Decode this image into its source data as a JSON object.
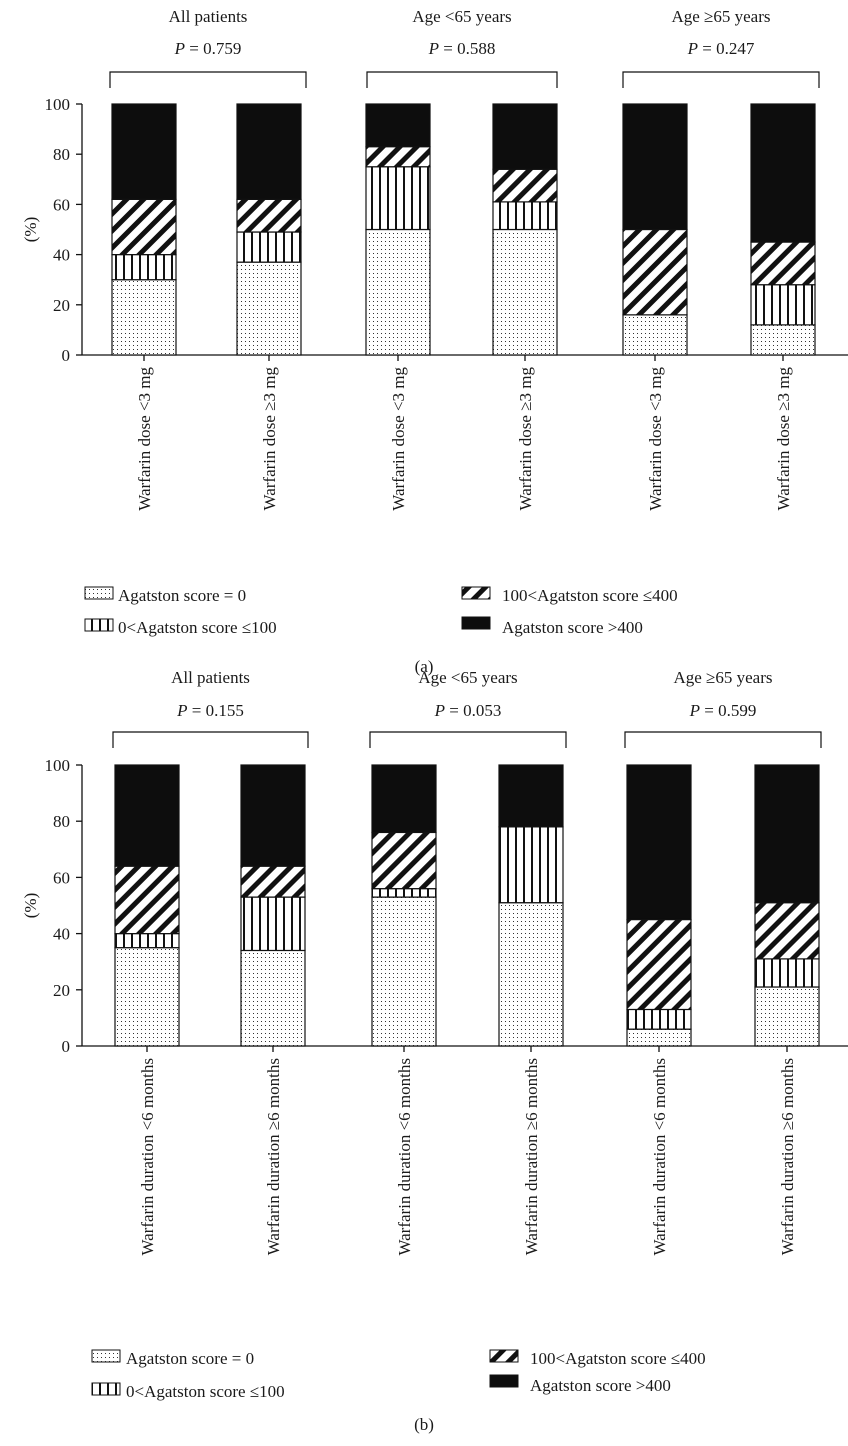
{
  "legend": {
    "items": [
      {
        "key": "s0",
        "label": "Agatston score = 0"
      },
      {
        "key": "s1",
        "label": "0<Agatston score ≤100"
      },
      {
        "key": "s2",
        "label": "100<Agatston score ≤400"
      },
      {
        "key": "s3",
        "label": "Agatston score >400"
      }
    ]
  },
  "chart_data": [
    {
      "type": "bar",
      "stacked": true,
      "panel_label": "(a)",
      "ylabel": "(%)",
      "ylim": [
        0,
        100
      ],
      "yticks": [
        0,
        20,
        40,
        60,
        80,
        100
      ],
      "groups": [
        {
          "title": "All patients",
          "p_label": "P",
          "p_value": "= 0.759"
        },
        {
          "title": "Age <65 years",
          "p_label": "P",
          "p_value": "= 0.588"
        },
        {
          "title": "Age ≥65 years",
          "p_label": "P",
          "p_value": "= 0.247"
        }
      ],
      "categories": [
        "Warfarin dose <3 mg",
        "Warfarin dose ≥3 mg",
        "Warfarin dose <3 mg",
        "Warfarin dose ≥3 mg",
        "Warfarin dose <3 mg",
        "Warfarin dose ≥3 mg"
      ],
      "series": [
        {
          "name": "Agatston score = 0",
          "pattern": "dots",
          "values": [
            30,
            37,
            50,
            50,
            16,
            12
          ]
        },
        {
          "name": "0<Agatston score ≤100",
          "pattern": "vertical",
          "values": [
            10,
            12,
            25,
            11,
            0,
            16
          ]
        },
        {
          "name": "100<Agatston score ≤400",
          "pattern": "diagonal",
          "values": [
            22,
            13,
            8,
            13,
            34,
            17
          ]
        },
        {
          "name": "Agatston score >400",
          "pattern": "solid",
          "values": [
            38,
            38,
            17,
            26,
            50,
            55
          ]
        }
      ]
    },
    {
      "type": "bar",
      "stacked": true,
      "panel_label": "(b)",
      "ylabel": "(%)",
      "ylim": [
        0,
        100
      ],
      "yticks": [
        0,
        20,
        40,
        60,
        80,
        100
      ],
      "groups": [
        {
          "title": "All patients",
          "p_label": "P",
          "p_value": "= 0.155"
        },
        {
          "title": "Age <65 years",
          "p_label": "P",
          "p_value": "= 0.053"
        },
        {
          "title": "Age ≥65 years",
          "p_label": "P",
          "p_value": "= 0.599"
        }
      ],
      "categories": [
        "Warfarin duration <6 months",
        "Warfarin duration ≥6 months",
        "Warfarin duration <6 months",
        "Warfarin duration ≥6 months",
        "Warfarin duration <6 months",
        "Warfarin duration ≥6 months"
      ],
      "series": [
        {
          "name": "Agatston score = 0",
          "pattern": "dots",
          "values": [
            35,
            34,
            53,
            51,
            6,
            21
          ]
        },
        {
          "name": "0<Agatston score ≤100",
          "pattern": "vertical",
          "values": [
            5,
            19,
            3,
            27,
            7,
            10
          ]
        },
        {
          "name": "100<Agatston score ≤400",
          "pattern": "diagonal",
          "values": [
            24,
            11,
            20,
            0,
            32,
            20
          ]
        },
        {
          "name": "Agatston score >400",
          "pattern": "solid",
          "values": [
            36,
            36,
            24,
            22,
            55,
            49
          ]
        }
      ]
    }
  ]
}
